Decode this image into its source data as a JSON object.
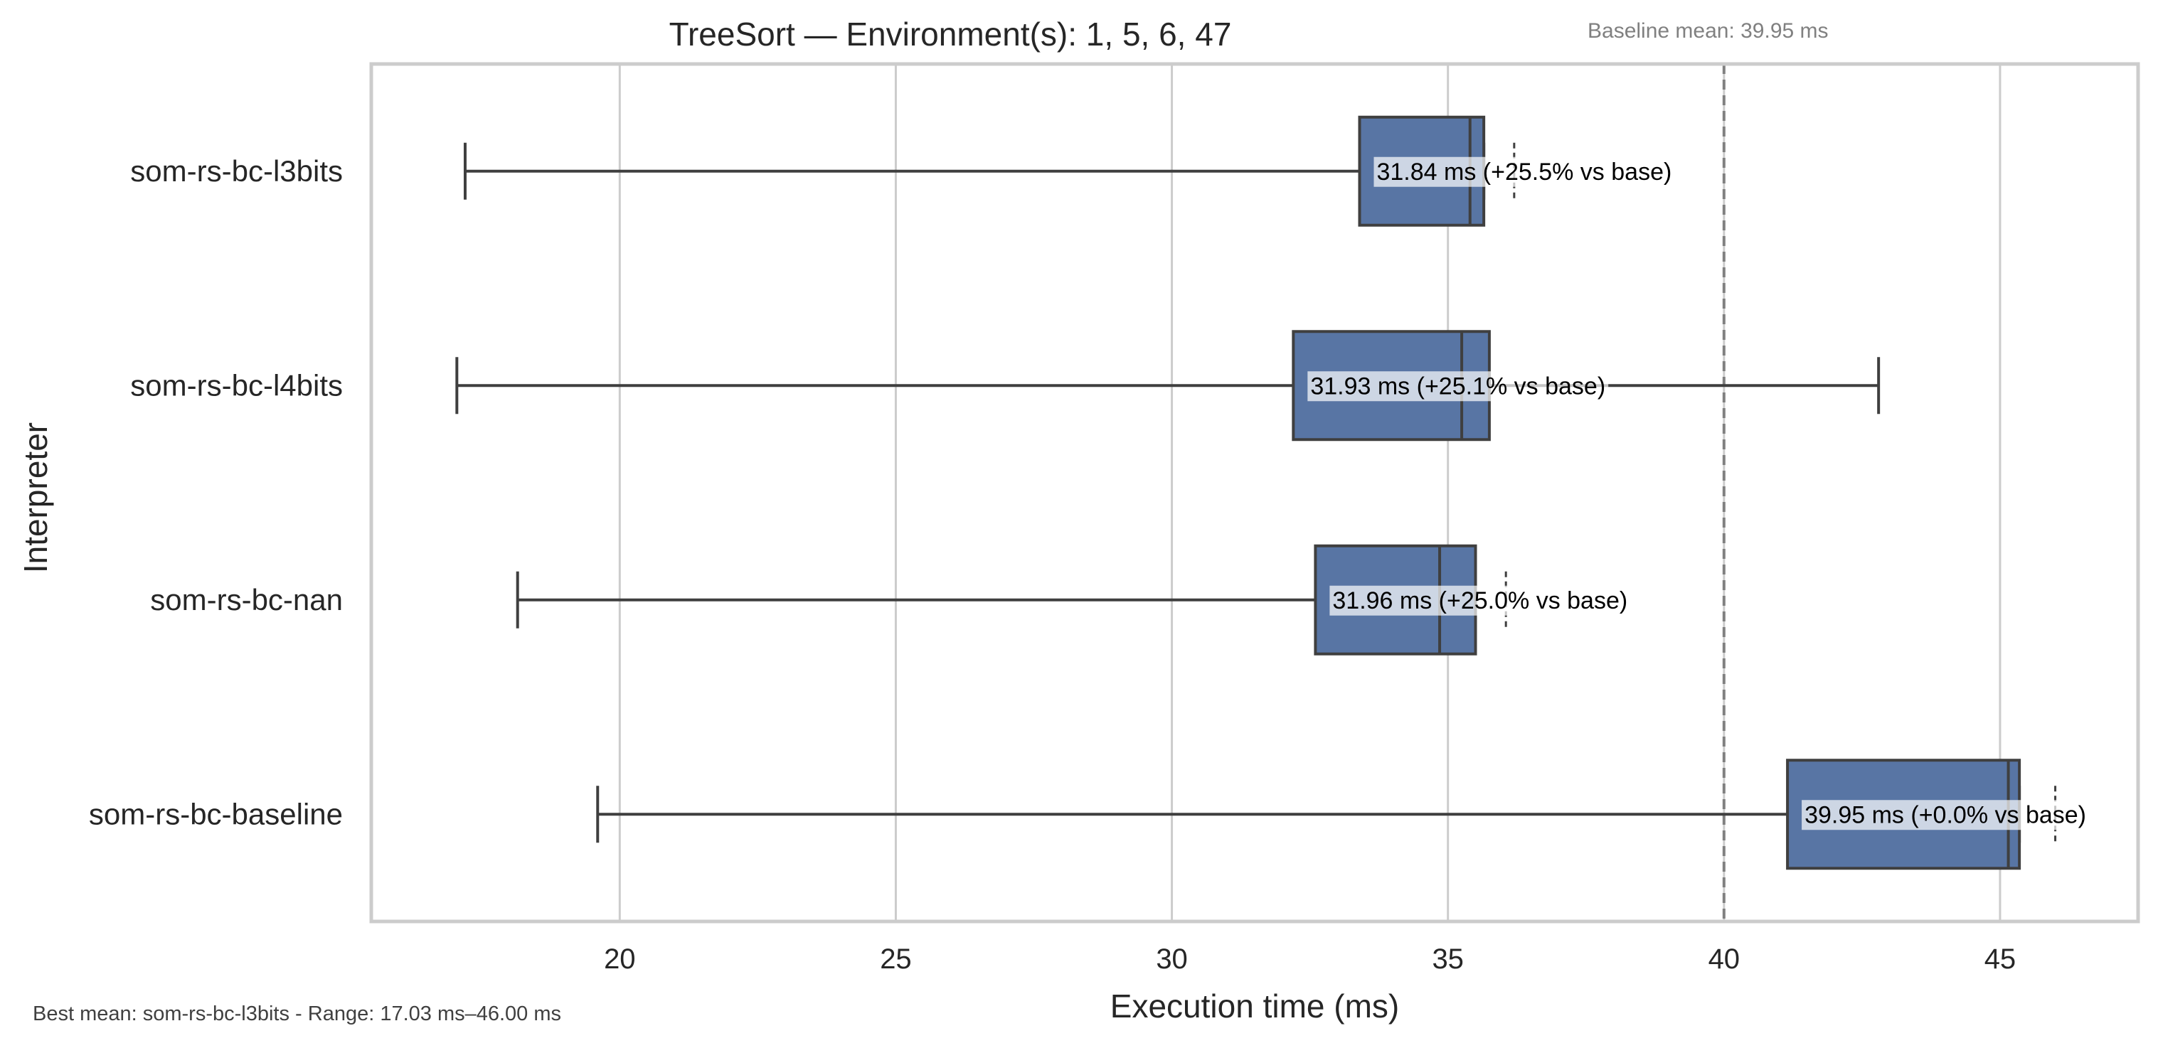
{
  "chart_data": {
    "type": "box",
    "orientation": "horizontal",
    "title": "TreeSort — Environment(s): 1, 5, 6, 47",
    "baseline_note": "Baseline mean: 39.95 ms",
    "xlabel": "Execution time (ms)",
    "ylabel": "Interpreter",
    "xlim": [
      15.5,
      47.5
    ],
    "xticks": [
      20,
      25,
      30,
      35,
      40,
      45
    ],
    "grid": true,
    "baseline_line": 40.0,
    "color": "#5875a4",
    "categories": [
      "som-rs-bc-l3bits",
      "som-rs-bc-l4bits",
      "som-rs-bc-nan",
      "som-rs-bc-baseline"
    ],
    "boxes": [
      {
        "name": "som-rs-bc-l3bits",
        "whisker_low": 17.2,
        "q1": 33.4,
        "median": 35.4,
        "q3": 35.65,
        "whisker_high": 35.65,
        "outliers": [
          36.2
        ],
        "label": "31.84 ms  (+25.5% vs base)"
      },
      {
        "name": "som-rs-bc-l4bits",
        "whisker_low": 17.05,
        "q1": 32.2,
        "median": 35.25,
        "q3": 35.75,
        "whisker_high": 42.8,
        "outliers": [],
        "label": "31.93 ms  (+25.1% vs base)"
      },
      {
        "name": "som-rs-bc-nan",
        "whisker_low": 18.15,
        "q1": 32.6,
        "median": 34.85,
        "q3": 35.5,
        "whisker_high": 35.5,
        "outliers": [
          36.05
        ],
        "label": "31.96 ms  (+25.0% vs base)"
      },
      {
        "name": "som-rs-bc-baseline",
        "whisker_low": 19.6,
        "q1": 41.15,
        "median": 45.15,
        "q3": 45.35,
        "whisker_high": 45.35,
        "outliers": [
          46.0
        ],
        "label": "39.95 ms  (+0.0% vs base)"
      }
    ],
    "footer": "Best mean: som-rs-bc-l3bits - Range: 17.03 ms–46.00 ms"
  }
}
